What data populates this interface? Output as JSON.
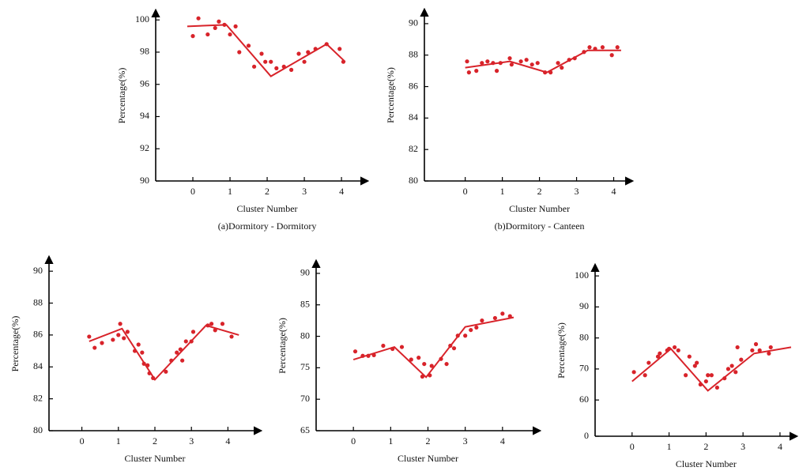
{
  "chart_data": [
    {
      "type": "scatter",
      "color": "#d8232a",
      "caption": "(a)Dormitory - Dormitory",
      "x_label": "Cluster Number",
      "y_label": "Percentage(%)",
      "xlim": [
        -1,
        4.7
      ],
      "ylim": [
        90,
        100.6
      ],
      "xticks": [
        0,
        1,
        2,
        3,
        4
      ],
      "yticks": [
        90,
        92,
        94,
        96,
        98,
        100
      ],
      "points": {
        "x": [
          0,
          0.15,
          0.4,
          0.6,
          0.7,
          0.85,
          1.0,
          1.15,
          1.25,
          1.5,
          1.65,
          1.85,
          1.95,
          2.1,
          2.25,
          2.45,
          2.65,
          2.85,
          3.0,
          3.1,
          3.3,
          3.6,
          3.95,
          4.05
        ],
        "y": [
          99.0,
          100.1,
          99.1,
          99.5,
          99.9,
          99.7,
          99.1,
          99.6,
          98.0,
          98.4,
          97.1,
          97.9,
          97.4,
          97.4,
          97.0,
          97.1,
          96.9,
          97.9,
          97.4,
          98.0,
          98.2,
          98.5,
          98.2,
          97.4
        ]
      },
      "line": {
        "x": [
          -0.15,
          0.9,
          2.1,
          3.6,
          4.1
        ],
        "y": [
          99.6,
          99.7,
          96.5,
          98.5,
          97.4
        ]
      }
    },
    {
      "type": "scatter",
      "color": "#d8232a",
      "caption": "(b)Dormitory - Canteen",
      "x_label": "Cluster Number",
      "y_label": "Percentage(%)",
      "xlim": [
        -1.1,
        4.5
      ],
      "ylim": [
        80,
        90.9
      ],
      "xticks": [
        0,
        1,
        2,
        3,
        4
      ],
      "yticks": [
        80,
        82,
        84,
        86,
        88,
        90
      ],
      "points": {
        "x": [
          0.05,
          0.1,
          0.3,
          0.45,
          0.6,
          0.75,
          0.85,
          0.95,
          1.2,
          1.25,
          1.5,
          1.65,
          1.8,
          1.95,
          2.15,
          2.3,
          2.5,
          2.6,
          2.8,
          2.95,
          3.2,
          3.35,
          3.5,
          3.7,
          3.95,
          4.1
        ],
        "y": [
          87.6,
          86.9,
          87.0,
          87.5,
          87.6,
          87.5,
          87.0,
          87.5,
          87.8,
          87.4,
          87.6,
          87.7,
          87.4,
          87.5,
          86.9,
          86.9,
          87.5,
          87.2,
          87.7,
          87.8,
          88.2,
          88.5,
          88.4,
          88.5,
          88.0,
          88.5
        ]
      },
      "line": {
        "x": [
          0,
          1.2,
          2.2,
          3.3,
          4.2
        ],
        "y": [
          87.2,
          87.6,
          86.9,
          88.3,
          88.3
        ]
      }
    },
    {
      "type": "scatter",
      "color": "#d8232a",
      "x_label": "Cluster Number",
      "y_label": "Percentage(%)",
      "xlim": [
        -0.9,
        4.9
      ],
      "ylim": [
        80,
        90.9
      ],
      "xticks": [
        0,
        1,
        2,
        3,
        4
      ],
      "yticks": [
        80,
        82,
        84,
        86,
        88,
        90
      ],
      "points": {
        "x": [
          0.2,
          0.35,
          0.55,
          0.85,
          1.0,
          1.05,
          1.15,
          1.25,
          1.45,
          1.55,
          1.65,
          1.7,
          1.8,
          1.85,
          1.95,
          2.3,
          2.45,
          2.6,
          2.7,
          2.75,
          2.85,
          3.0,
          3.05,
          3.45,
          3.55,
          3.65,
          3.85,
          4.1
        ],
        "y": [
          85.9,
          85.2,
          85.5,
          85.7,
          86.0,
          86.7,
          85.8,
          86.2,
          85.0,
          85.4,
          84.9,
          84.2,
          84.1,
          83.6,
          83.3,
          83.7,
          84.4,
          84.9,
          85.1,
          84.4,
          85.6,
          85.6,
          86.2,
          86.6,
          86.7,
          86.3,
          86.7,
          85.9
        ]
      },
      "line": {
        "x": [
          0.2,
          1.1,
          2.0,
          3.4,
          4.3
        ],
        "y": [
          85.6,
          86.4,
          83.2,
          86.6,
          86.0
        ]
      }
    },
    {
      "type": "scatter",
      "color": "#d8232a",
      "x_label": "Cluster Number",
      "y_label": "Percentage(%)",
      "xlim": [
        -1,
        5
      ],
      "ylim": [
        65,
        92
      ],
      "xticks": [
        0,
        1,
        2,
        3,
        4
      ],
      "yticks": [
        65,
        70,
        75,
        80,
        85,
        90
      ],
      "points": {
        "x": [
          0.05,
          0.25,
          0.4,
          0.55,
          0.8,
          1.05,
          1.3,
          1.55,
          1.75,
          1.85,
          1.9,
          2.05,
          2.1,
          2.35,
          2.5,
          2.6,
          2.7,
          2.8,
          3.0,
          3.15,
          3.3,
          3.45,
          3.8,
          4.0,
          4.2
        ],
        "y": [
          77.6,
          76.9,
          76.9,
          77.0,
          78.5,
          78.0,
          78.3,
          76.3,
          76.6,
          73.6,
          75.6,
          73.8,
          75.3,
          76.4,
          75.6,
          78.5,
          78.1,
          80.1,
          80.1,
          81.0,
          81.4,
          82.5,
          82.9,
          83.6,
          83.2
        ]
      },
      "line": {
        "x": [
          0,
          1.1,
          1.95,
          3.0,
          4.3
        ],
        "y": [
          76.3,
          78.3,
          73.5,
          81.5,
          83.0
        ]
      }
    },
    {
      "type": "scatter",
      "color": "#d8232a",
      "x_label": "Cluster Number",
      "y_label": "Percentage(%)",
      "xlim": [
        -1,
        4.45
      ],
      "ylim": [
        0,
        103.6
      ],
      "ybreak": [
        0,
        58
      ],
      "xticks": [
        0,
        1,
        2,
        3,
        4
      ],
      "yticks": [
        0,
        60,
        70,
        80,
        90,
        100
      ],
      "points": {
        "x": [
          0.05,
          0.35,
          0.45,
          0.7,
          0.75,
          0.95,
          1.0,
          1.15,
          1.25,
          1.45,
          1.55,
          1.7,
          1.75,
          1.85,
          2.0,
          2.05,
          2.15,
          2.3,
          2.5,
          2.6,
          2.7,
          2.8,
          2.85,
          2.95,
          3.25,
          3.35,
          3.45,
          3.7,
          3.75
        ],
        "y": [
          69,
          68,
          72,
          74,
          75,
          76,
          76.5,
          77,
          76,
          68,
          74,
          71,
          72,
          65,
          66,
          68,
          68,
          64,
          67,
          70,
          71,
          69,
          77,
          73,
          76,
          78,
          76,
          75,
          77
        ]
      },
      "line": {
        "x": [
          0,
          1.05,
          2.05,
          3.3,
          4.3
        ],
        "y": [
          66,
          76.5,
          63,
          75,
          77
        ]
      }
    }
  ]
}
